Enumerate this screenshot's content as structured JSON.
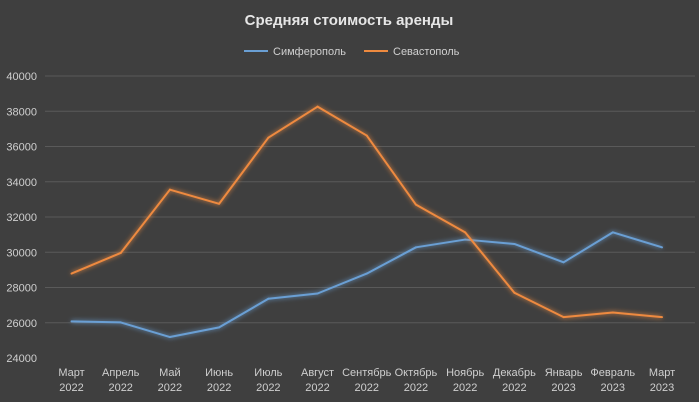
{
  "chart_data": {
    "type": "line",
    "title": "Средняя стоимость аренды",
    "xlabel": "",
    "ylabel": "",
    "ylim": [
      24000,
      40000
    ],
    "yticks": [
      24000,
      26000,
      28000,
      30000,
      32000,
      34000,
      36000,
      38000,
      40000
    ],
    "grid": true,
    "legend_position": "top",
    "categories": [
      [
        "Март",
        "2022"
      ],
      [
        "Апрель",
        "2022"
      ],
      [
        "Май",
        "2022"
      ],
      [
        "Июнь",
        "2022"
      ],
      [
        "Июль",
        "2022"
      ],
      [
        "Август",
        "2022"
      ],
      [
        "Сентябрь",
        "2022"
      ],
      [
        "Октябрь",
        "2022"
      ],
      [
        "Ноябрь",
        "2022"
      ],
      [
        "Декабрь",
        "2022"
      ],
      [
        "Январь",
        "2023"
      ],
      [
        "Февраль",
        "2023"
      ],
      [
        "Март",
        "2023"
      ]
    ],
    "series": [
      {
        "name": "Симферополь",
        "color": "#6a9fd4",
        "values": [
          26080,
          26020,
          25190,
          25740,
          27360,
          27660,
          28790,
          30280,
          30720,
          30470,
          29430,
          31130,
          30280
        ]
      },
      {
        "name": "Севастополь",
        "color": "#ee8a3f",
        "values": [
          28790,
          29960,
          33550,
          32750,
          36500,
          38260,
          36620,
          32700,
          31130,
          27700,
          26320,
          26580,
          26320
        ]
      }
    ]
  }
}
